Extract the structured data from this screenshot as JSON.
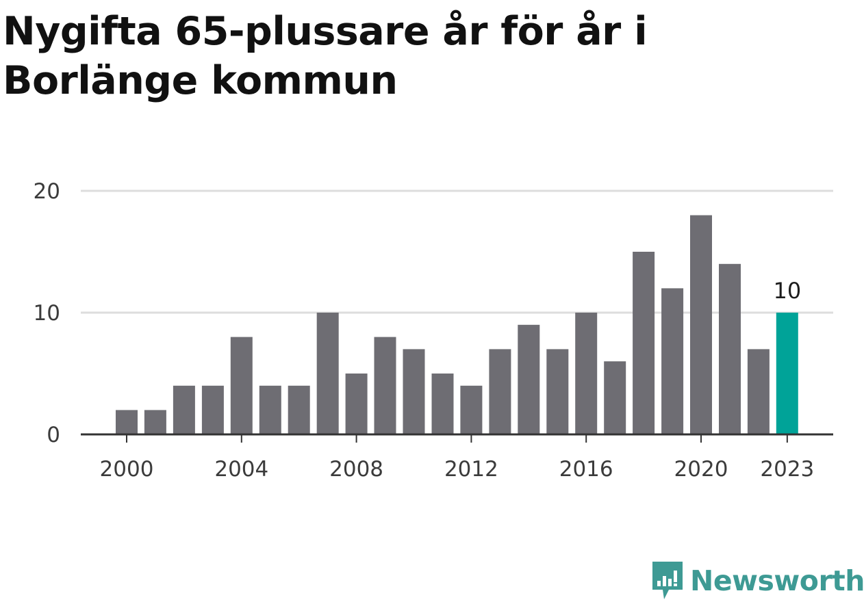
{
  "title": "Nygifta 65-plussare år för år i Borlänge kommun",
  "brand": {
    "name": "Newsworthy",
    "icon": "newsworthy-logo-icon",
    "color": "#3e9a94"
  },
  "chart_data": {
    "type": "bar",
    "title": "Nygifta 65-plussare år för år i Borlänge kommun",
    "xlabel": "",
    "ylabel": "",
    "categories": [
      "2000",
      "2001",
      "2002",
      "2003",
      "2004",
      "2005",
      "2006",
      "2007",
      "2008",
      "2009",
      "2010",
      "2011",
      "2012",
      "2013",
      "2014",
      "2015",
      "2016",
      "2017",
      "2018",
      "2019",
      "2020",
      "2021",
      "2022",
      "2023"
    ],
    "values": [
      2,
      2,
      4,
      4,
      8,
      4,
      4,
      10,
      5,
      8,
      7,
      5,
      4,
      7,
      9,
      7,
      10,
      6,
      15,
      12,
      18,
      14,
      7,
      10
    ],
    "ylim": [
      0,
      20
    ],
    "yticks": [
      0,
      10,
      20
    ],
    "xtick_labels": [
      "2000",
      "2004",
      "2008",
      "2012",
      "2016",
      "2020",
      "2023"
    ],
    "highlight": {
      "category": "2023",
      "label": "10"
    },
    "colors": {
      "bar": "#6e6d73",
      "highlight": "#00a398",
      "grid": "#dddddd",
      "axis": "#333333"
    },
    "grid": true,
    "legend": "none"
  }
}
